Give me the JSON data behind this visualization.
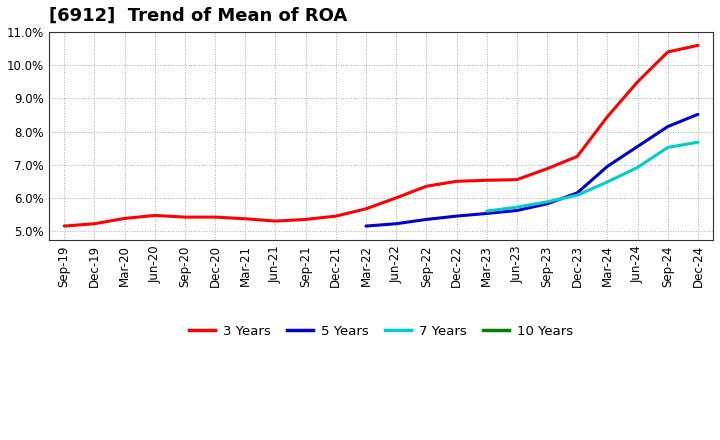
{
  "title": "[6912]  Trend of Mean of ROA",
  "x_labels": [
    "Sep-19",
    "Dec-19",
    "Mar-20",
    "Jun-20",
    "Sep-20",
    "Dec-20",
    "Mar-21",
    "Jun-21",
    "Sep-21",
    "Dec-21",
    "Mar-22",
    "Jun-22",
    "Sep-22",
    "Dec-22",
    "Mar-23",
    "Jun-23",
    "Sep-23",
    "Dec-23",
    "Mar-24",
    "Jun-24",
    "Sep-24",
    "Dec-24"
  ],
  "series": {
    "3 Years": {
      "color": "#FF0000",
      "data": [
        5.15,
        5.22,
        5.38,
        5.47,
        5.42,
        5.42,
        5.37,
        5.3,
        5.35,
        5.45,
        5.67,
        6.0,
        6.35,
        6.5,
        6.53,
        6.55,
        6.88,
        7.25,
        8.45,
        9.5,
        10.4,
        10.6
      ]
    },
    "5 Years": {
      "color": "#0000CC",
      "data": [
        null,
        null,
        null,
        null,
        null,
        null,
        null,
        null,
        null,
        null,
        5.15,
        5.22,
        5.35,
        5.45,
        5.53,
        5.62,
        5.82,
        6.15,
        6.95,
        7.55,
        8.15,
        8.52
      ]
    },
    "7 Years": {
      "color": "#00CCCC",
      "data": [
        null,
        null,
        null,
        null,
        null,
        null,
        null,
        null,
        null,
        null,
        null,
        null,
        null,
        null,
        5.6,
        5.72,
        5.88,
        6.08,
        6.48,
        6.92,
        7.52,
        7.68
      ]
    },
    "10 Years": {
      "color": "#008000",
      "data": [
        null,
        null,
        null,
        null,
        null,
        null,
        null,
        null,
        null,
        null,
        null,
        null,
        null,
        null,
        null,
        null,
        null,
        null,
        null,
        null,
        null,
        null
      ]
    }
  },
  "ylim": [
    4.72,
    11.0
  ],
  "yticks": [
    5.0,
    6.0,
    7.0,
    8.0,
    9.0,
    10.0,
    11.0
  ],
  "ytick_labels": [
    "5.0%",
    "6.0%",
    "7.0%",
    "8.0%",
    "9.0%",
    "10.0%",
    "11.0%"
  ],
  "background_color": "#FFFFFF",
  "grid_color": "#888888",
  "legend_entries": [
    "3 Years",
    "5 Years",
    "7 Years",
    "10 Years"
  ],
  "legend_colors": [
    "#FF0000",
    "#0000CC",
    "#00CCCC",
    "#008000"
  ],
  "title_fontsize": 13,
  "tick_fontsize": 8.5
}
